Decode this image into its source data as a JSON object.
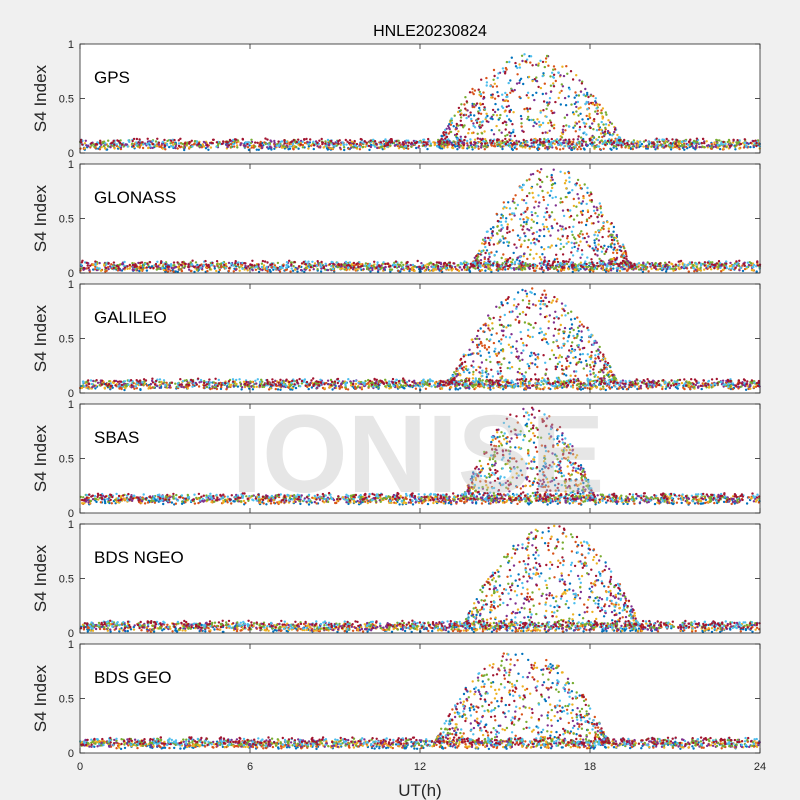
{
  "chart_data": {
    "type": "scatter",
    "title": "HNLE20230824",
    "xlabel": "UT(h)",
    "ylabel": "S4 Index",
    "xlim": [
      0,
      24
    ],
    "ylim": [
      0,
      1
    ],
    "x_ticks": [
      "0",
      "6",
      "12",
      "18",
      "24"
    ],
    "y_ticks": [
      "0",
      "0.5",
      "1"
    ],
    "watermark": "IONISE",
    "colors": [
      "#0072bd",
      "#d95319",
      "#edb120",
      "#7e2f8e",
      "#77ac30",
      "#4dbeee",
      "#a2142f"
    ],
    "panels": [
      {
        "label": "GPS",
        "baseline": 0.08,
        "event_start": 12.6,
        "event_end": 19.2,
        "event_peak": 0.93
      },
      {
        "label": "GLONASS",
        "baseline": 0.06,
        "event_start": 13.8,
        "event_end": 19.5,
        "event_peak": 0.97
      },
      {
        "label": "GALILEO",
        "baseline": 0.08,
        "event_start": 13.0,
        "event_end": 19.0,
        "event_peak": 0.96
      },
      {
        "label": "SBAS",
        "baseline": 0.13,
        "event_start": 13.5,
        "event_end": 18.2,
        "event_peak": 0.97
      },
      {
        "label": "BDS NGEO",
        "baseline": 0.06,
        "event_start": 13.5,
        "event_end": 19.8,
        "event_peak": 0.99
      },
      {
        "label": "BDS GEO",
        "baseline": 0.09,
        "event_start": 12.5,
        "event_end": 18.7,
        "event_peak": 0.95
      }
    ]
  }
}
